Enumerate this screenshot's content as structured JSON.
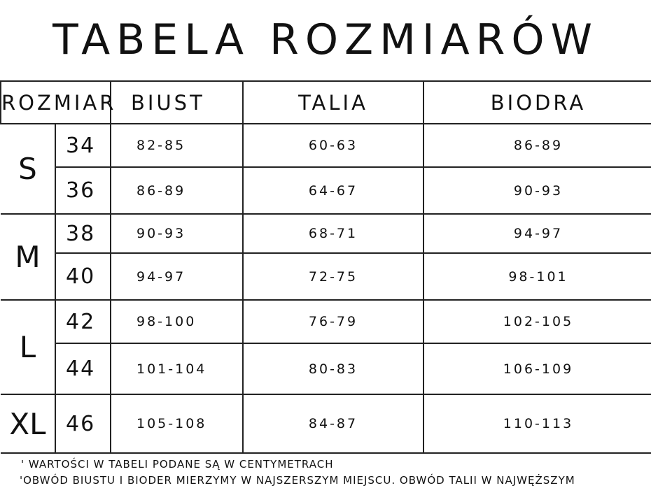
{
  "title": "TABELA ROZMIARÓW",
  "headers": {
    "size": "ROZMIAR",
    "bust": "BIUST",
    "waist": "TALIA",
    "hips": "BIODRA"
  },
  "groups": [
    {
      "letter": "S",
      "rows": [
        {
          "size": "34",
          "bust": "82-85",
          "waist": "60-63",
          "hips": "86-89"
        },
        {
          "size": "36",
          "bust": "86-89",
          "waist": "64-67",
          "hips": "90-93"
        }
      ]
    },
    {
      "letter": "M",
      "rows": [
        {
          "size": "38",
          "bust": "90-93",
          "waist": "68-71",
          "hips": "94-97"
        },
        {
          "size": "40",
          "bust": "94-97",
          "waist": "72-75",
          "hips": "98-101"
        }
      ]
    },
    {
      "letter": "L",
      "rows": [
        {
          "size": "42",
          "bust": "98-100",
          "waist": "76-79",
          "hips": "102-105"
        },
        {
          "size": "44",
          "bust": "101-104",
          "waist": "80-83",
          "hips": "106-109"
        }
      ]
    },
    {
      "letter": "XL",
      "rows": [
        {
          "size": "46",
          "bust": "105-108",
          "waist": "84-87",
          "hips": "110-113"
        }
      ]
    }
  ],
  "notes": [
    "' WARTOŚCI W TABELI PODANE SĄ W CENTYMETRACH",
    "'OBWÓD BIUSTU I BIODER MIERZYMY W NAJSZERSZYM MIEJSCU. OBWÓD TALII W NAJWĘŻSZYM"
  ]
}
